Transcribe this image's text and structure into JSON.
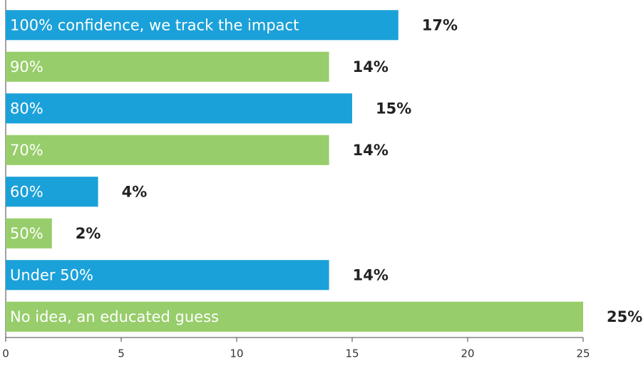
{
  "chart_data": {
    "type": "bar",
    "orientation": "horizontal",
    "categories": [
      "100% confidence, we track the impact",
      "90%",
      "80%",
      "70%",
      "60%",
      "50%",
      "Under 50%",
      "No idea, an educated guess"
    ],
    "values": [
      17,
      14,
      15,
      14,
      4,
      2,
      14,
      25
    ],
    "value_labels": [
      "17%",
      "14%",
      "15%",
      "14%",
      "4%",
      "2%",
      "14%",
      "25%"
    ],
    "colors": [
      "#1ba1d9",
      "#97cd6a",
      "#1ba1d9",
      "#97cd6a",
      "#1ba1d9",
      "#97cd6a",
      "#1ba1d9",
      "#97cd6a"
    ],
    "xlim": [
      0,
      25
    ],
    "xticks": [
      0,
      5,
      10,
      15,
      20,
      25
    ],
    "grid": false
  }
}
